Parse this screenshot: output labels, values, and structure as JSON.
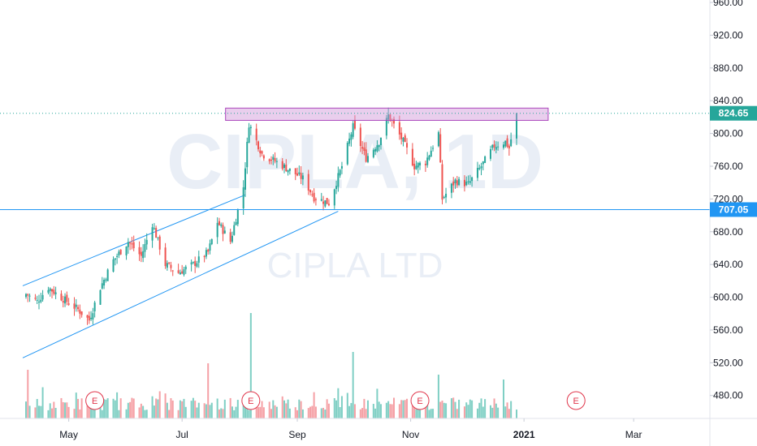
{
  "watermark": {
    "symbol": "CIPLA, 1D",
    "name": "CIPLA LTD"
  },
  "price_tags": {
    "last": "824.65",
    "level": "707.05"
  },
  "earnings_marker": "E",
  "chart_data": {
    "type": "candlestick",
    "x_axis_labels": [
      "May",
      "Jul",
      "Sep",
      "Nov",
      "2021",
      "Mar"
    ],
    "y_axis_labels": [
      "480.00",
      "520.00",
      "560.00",
      "600.00",
      "640.00",
      "680.00",
      "720.00",
      "760.00",
      "800.00",
      "840.00",
      "880.00",
      "920.00",
      "960.00"
    ],
    "ylim": [
      452,
      963
    ],
    "last_price": 824.65,
    "horizontal_support": 707.05,
    "resistance_zone": {
      "low": 816,
      "high": 831,
      "start": "2020-08-03",
      "end": "2021-01-14"
    },
    "ascending_channel": {
      "upper": [
        [
          "2020-04-08",
          614
        ],
        [
          "2020-08-04",
          725
        ]
      ],
      "lower": [
        [
          "2020-04-08",
          526
        ],
        [
          "2020-09-23",
          705
        ]
      ]
    },
    "earnings_dates": [
      "2020-05-15",
      "2020-08-07",
      "2020-11-06",
      "2021-01-29"
    ],
    "anchors": [
      [
        "2020-04-08",
        604
      ],
      [
        "2020-04-14",
        595
      ],
      [
        "2020-04-20",
        612
      ],
      [
        "2020-04-28",
        598
      ],
      [
        "2020-05-06",
        585
      ],
      [
        "2020-05-12",
        572
      ],
      [
        "2020-05-18",
        612
      ],
      [
        "2020-05-25",
        645
      ],
      [
        "2020-06-02",
        668
      ],
      [
        "2020-06-09",
        650
      ],
      [
        "2020-06-15",
        690
      ],
      [
        "2020-06-22",
        640
      ],
      [
        "2020-06-29",
        630
      ],
      [
        "2020-07-07",
        640
      ],
      [
        "2020-07-15",
        655
      ],
      [
        "2020-07-20",
        692
      ],
      [
        "2020-07-27",
        668
      ],
      [
        "2020-08-03",
        735
      ],
      [
        "2020-08-06",
        812
      ],
      [
        "2020-08-13",
        775
      ],
      [
        "2020-08-21",
        765
      ],
      [
        "2020-08-28",
        755
      ],
      [
        "2020-09-04",
        745
      ],
      [
        "2020-09-10",
        722
      ],
      [
        "2020-09-18",
        715
      ],
      [
        "2020-09-25",
        760
      ],
      [
        "2020-10-01",
        808
      ],
      [
        "2020-10-08",
        770
      ],
      [
        "2020-10-15",
        790
      ],
      [
        "2020-10-20",
        822
      ],
      [
        "2020-10-28",
        790
      ],
      [
        "2020-11-03",
        760
      ],
      [
        "2020-11-09",
        765
      ],
      [
        "2020-11-16",
        800
      ],
      [
        "2020-11-18",
        720
      ],
      [
        "2020-11-25",
        742
      ],
      [
        "2020-12-02",
        738
      ],
      [
        "2020-12-09",
        760
      ],
      [
        "2020-12-16",
        785
      ],
      [
        "2020-12-22",
        790
      ],
      [
        "2020-12-24",
        782
      ],
      [
        "2020-12-28",
        826
      ]
    ]
  }
}
